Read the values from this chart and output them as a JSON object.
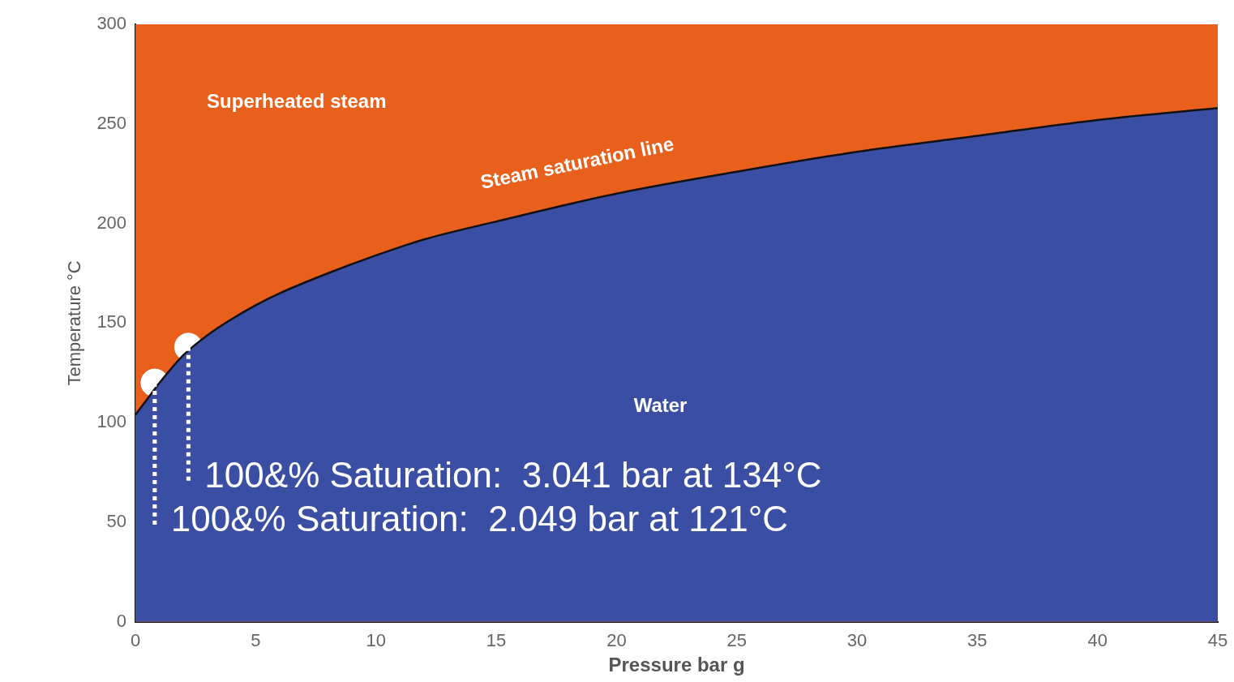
{
  "chart_data": {
    "type": "area",
    "xlabel": "Pressure bar g",
    "ylabel": "Temperature °C",
    "xlim": [
      0,
      45
    ],
    "ylim": [
      0,
      300
    ],
    "xticks": [
      0,
      5,
      10,
      15,
      20,
      25,
      30,
      35,
      40,
      45
    ],
    "yticks": [
      0,
      50,
      100,
      150,
      200,
      250,
      300
    ],
    "grid": false,
    "legend": false,
    "series": [
      {
        "name": "Water",
        "color": "#3a4fa3",
        "x": [
          0,
          0.5,
          1,
          2,
          3,
          4,
          5,
          6,
          8,
          10,
          12,
          15,
          20,
          25,
          30,
          35,
          40,
          45
        ],
        "values": [
          104,
          112,
          120,
          134,
          144,
          152,
          159,
          165,
          175,
          184,
          192,
          201,
          215,
          226,
          236,
          244,
          252,
          258
        ]
      },
      {
        "type": "scatter",
        "marker": "circle",
        "color": "#ffffff",
        "x": [
          0.8,
          2.2
        ],
        "values": [
          120,
          138
        ]
      }
    ],
    "bands": [
      {
        "axis": "y",
        "from": 0,
        "to": 300,
        "color": "#e8601c",
        "label": "Superheated steam"
      }
    ],
    "annotations": [
      "Steam saturation line",
      {
        "text": "100&% Saturation:  3.041 bar at 134°C",
        "x": 2.2,
        "y": 138
      },
      {
        "text": "100&% Saturation:  2.049 bar at 121°C",
        "x": 0.8,
        "y": 120
      }
    ]
  }
}
